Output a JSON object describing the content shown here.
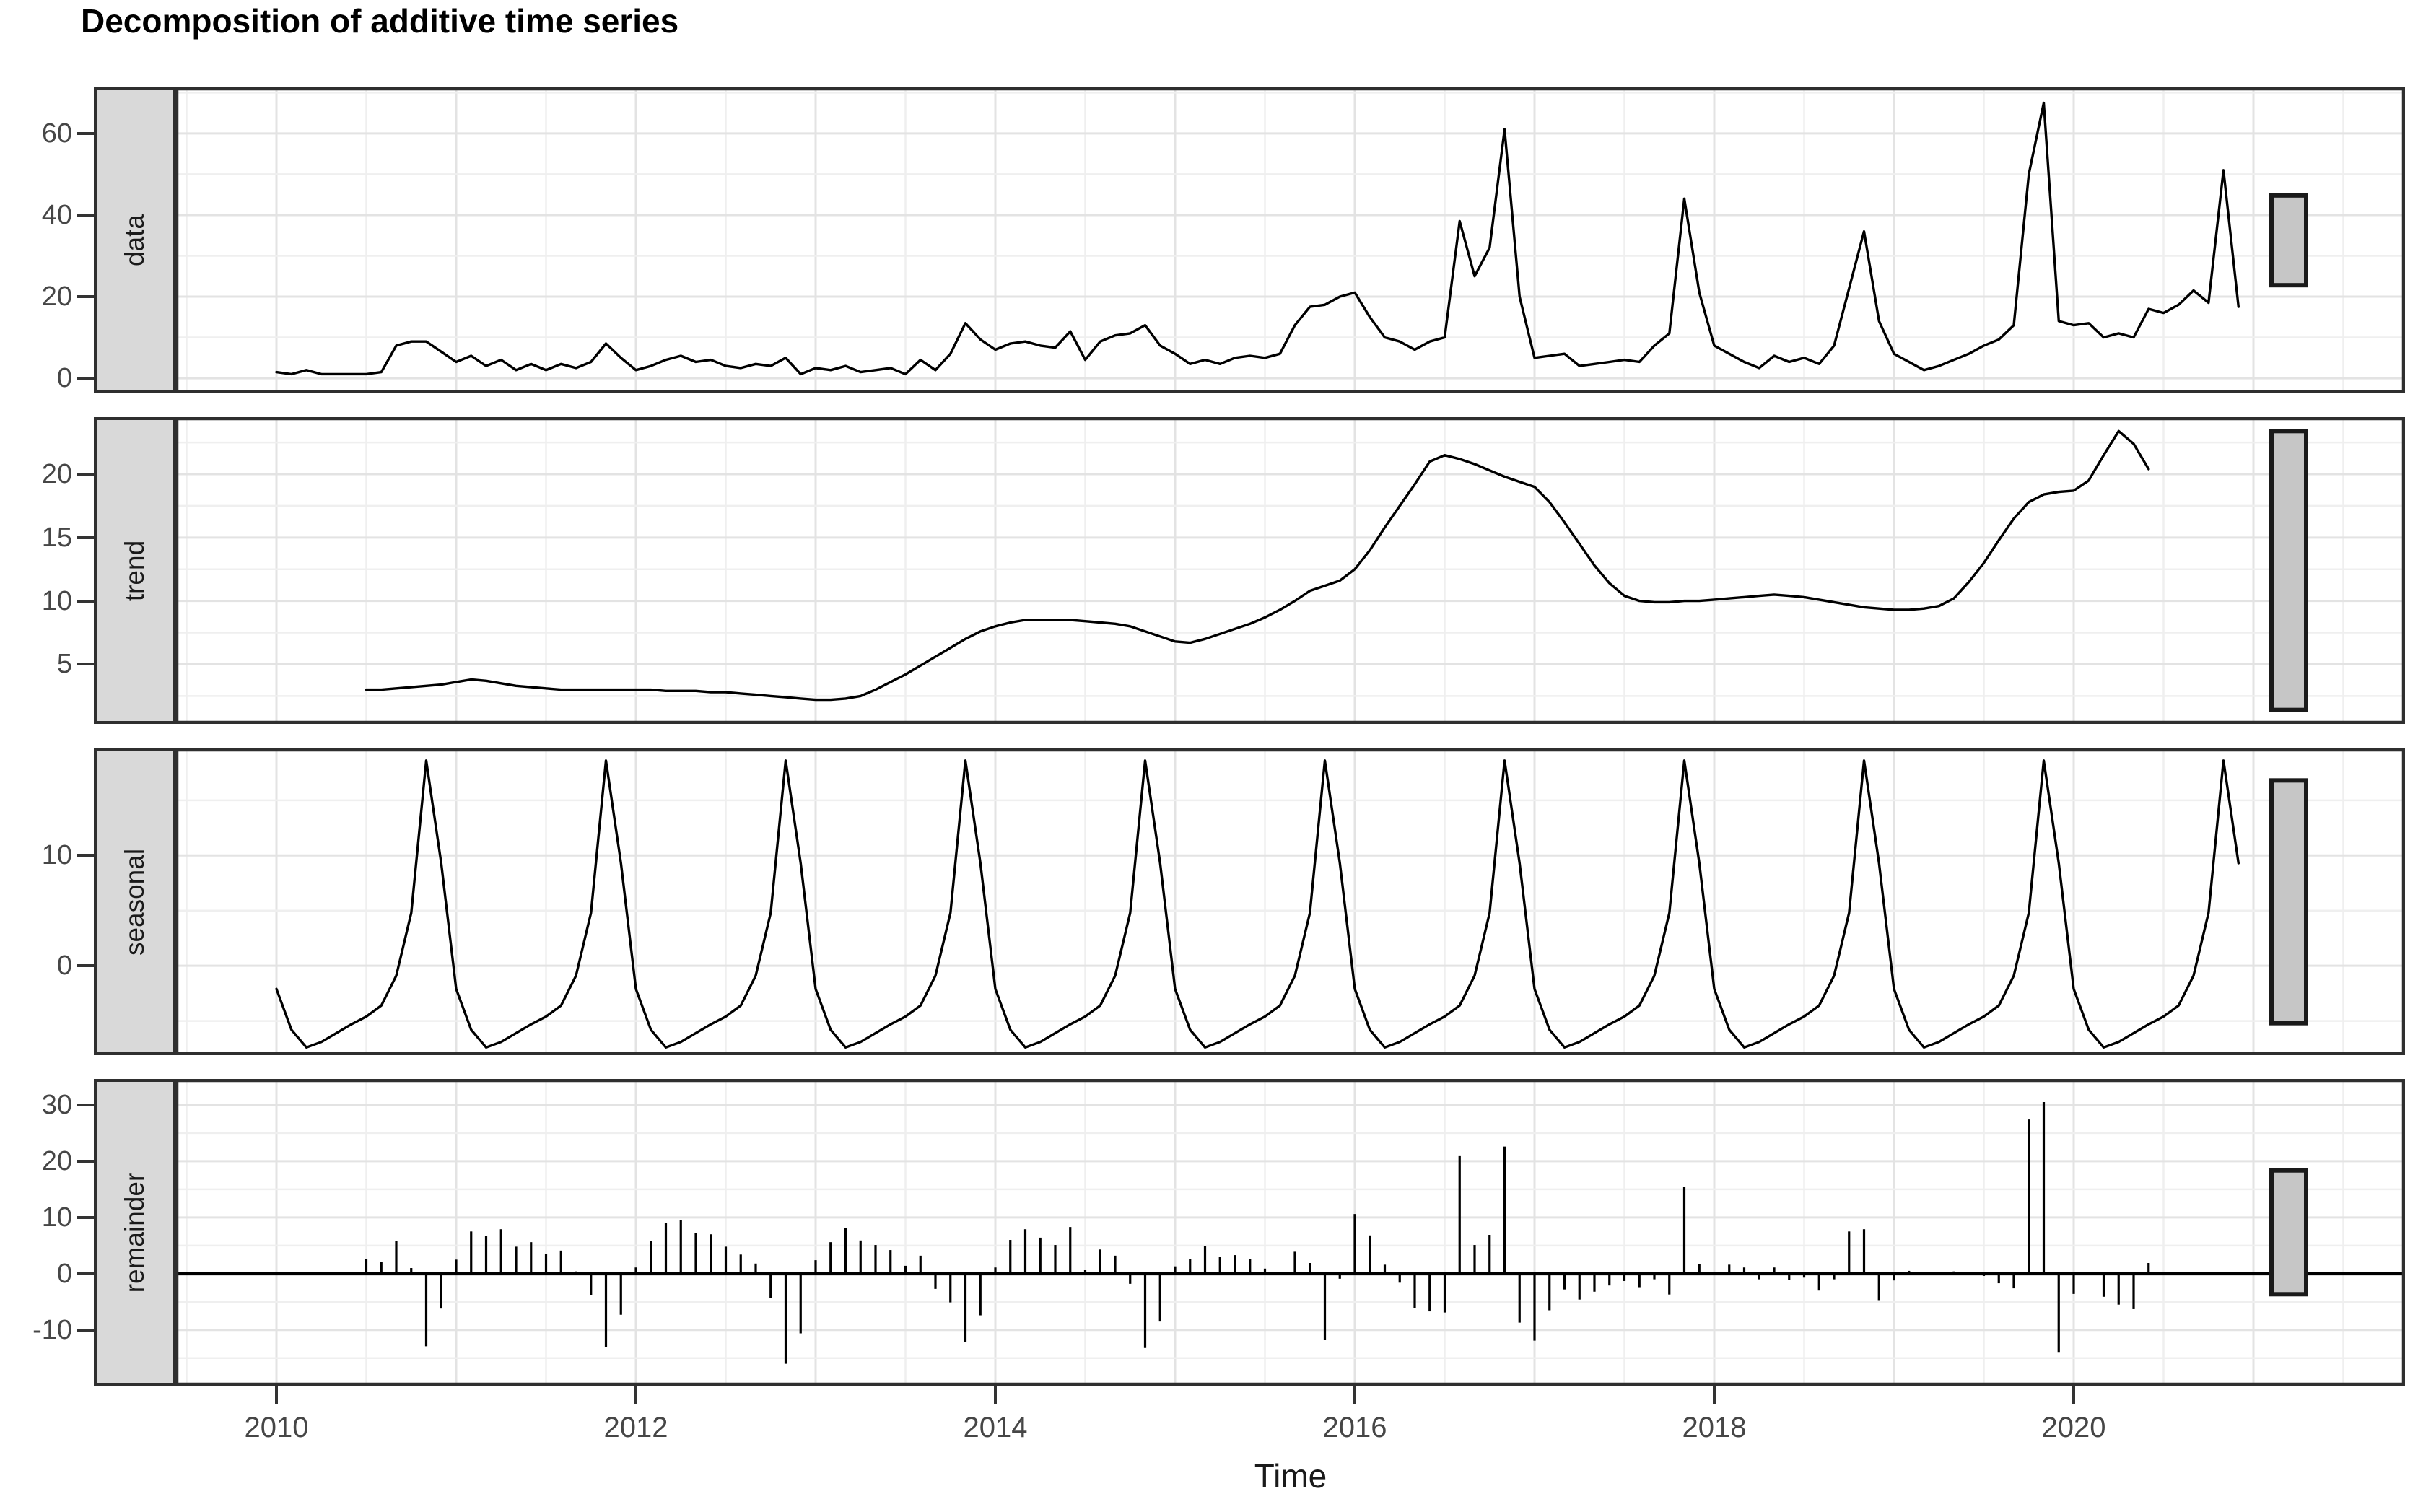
{
  "chart_data": {
    "type": "line",
    "title": "Decomposition of additive time series",
    "x_axis": {
      "label": "Time",
      "ticks": [
        "2010",
        "2012",
        "2014",
        "2016",
        "2018",
        "2020"
      ],
      "tick_years": [
        2010,
        2012,
        2014,
        2016,
        2018,
        2020
      ],
      "range": [
        2009.45,
        2021.83
      ]
    },
    "start_year": 2010,
    "frequency": 12,
    "panels": [
      {
        "id": "data",
        "label": "data",
        "kind": "line",
        "series": "observed",
        "ylim": [
          -3.7,
          71.3
        ],
        "yticks": [
          0,
          20,
          40,
          60
        ]
      },
      {
        "id": "trend",
        "label": "trend",
        "kind": "line",
        "series": "trend",
        "ylim": [
          0.3,
          24.5
        ],
        "yticks": [
          5,
          10,
          15,
          20
        ]
      },
      {
        "id": "seasonal",
        "label": "seasonal",
        "kind": "line",
        "series": "seasonal",
        "ylim": [
          -8.1,
          19.7
        ],
        "yticks": [
          0,
          10
        ]
      },
      {
        "id": "remainder",
        "label": "remainder",
        "kind": "bar",
        "series": "remainder",
        "ylim": [
          -19.9,
          34.6
        ],
        "yticks": [
          -10,
          0,
          10,
          20,
          30
        ],
        "zero_line": true
      }
    ],
    "scale_bar_units": 22,
    "observed": [
      1.5,
      1,
      2,
      1,
      1,
      1,
      1,
      1.5,
      8,
      9,
      9,
      6.5,
      4,
      5.5,
      3,
      4.5,
      2,
      3.5,
      2,
      3.5,
      2.5,
      4,
      8.5,
      5,
      2,
      3,
      4.5,
      5.5,
      4,
      4.5,
      3,
      2.5,
      3.5,
      3,
      5,
      1,
      2.5,
      2,
      3,
      1.5,
      2,
      2.5,
      1,
      4.5,
      2,
      6,
      13.5,
      9.5,
      7,
      8.5,
      9,
      8,
      7.5,
      11.5,
      4.5,
      9,
      10.5,
      11,
      13,
      8,
      6,
      3.5,
      4.5,
      3.5,
      5,
      5.5,
      5,
      6,
      13,
      17.5,
      18,
      20,
      21,
      15,
      10,
      9,
      7,
      9,
      10,
      38.5,
      25,
      32,
      61,
      20,
      5,
      5.5,
      6,
      3,
      3.5,
      4,
      4.5,
      4,
      8,
      11,
      44,
      21,
      8,
      6,
      4,
      2.5,
      5.5,
      4,
      5,
      3.5,
      8,
      22,
      36,
      14,
      6,
      4,
      2,
      3,
      4.5,
      6,
      8,
      9.5,
      13,
      50,
      67.5,
      14,
      13,
      13.5,
      10,
      11,
      10,
      17,
      16,
      18,
      21.5,
      18.5,
      51,
      17.5
    ],
    "trend": [
      null,
      null,
      null,
      null,
      null,
      null,
      3,
      3,
      3.1,
      3.2,
      3.3,
      3.4,
      3.6,
      3.8,
      3.7,
      3.5,
      3.3,
      3.2,
      3.1,
      3,
      3,
      3,
      3,
      3,
      3,
      3,
      2.9,
      2.9,
      2.9,
      2.8,
      2.8,
      2.7,
      2.6,
      2.5,
      2.4,
      2.3,
      2.2,
      2.2,
      2.3,
      2.5,
      3,
      3.6,
      4.2,
      4.9,
      5.6,
      6.3,
      7,
      7.6,
      8,
      8.3,
      8.5,
      8.5,
      8.5,
      8.5,
      8.4,
      8.3,
      8.2,
      8,
      7.6,
      7.2,
      6.8,
      6.7,
      7,
      7.4,
      7.8,
      8.2,
      8.7,
      9.3,
      10,
      10.8,
      11.2,
      11.6,
      12.5,
      14,
      15.8,
      17.5,
      19.2,
      21,
      21.5,
      21.2,
      20.8,
      20.3,
      19.8,
      19.4,
      19,
      17.8,
      16.2,
      14.5,
      12.8,
      11.4,
      10.4,
      10,
      9.9,
      9.9,
      10,
      10,
      10.1,
      10.2,
      10.3,
      10.4,
      10.5,
      10.4,
      10.3,
      10.1,
      9.9,
      9.7,
      9.5,
      9.4,
      9.3,
      9.3,
      9.4,
      9.6,
      10.2,
      11.5,
      13,
      14.8,
      16.5,
      17.8,
      18.4,
      18.6,
      18.7,
      19.5,
      21.5,
      23.4,
      22.4,
      20.4,
      null,
      null,
      null,
      null,
      null,
      null
    ],
    "seasonal_pattern": [
      -2.1,
      -5.8,
      -7.4,
      -6.9,
      -6.1,
      -5.3,
      -4.6,
      -3.6,
      -0.9,
      4.8,
      18.6,
      9.3
    ],
    "colors": {
      "series_line": "#000000",
      "strip_fill": "#d9d9d9",
      "panel_border": "#2f2f2f",
      "grid_major": "#e3e3e3",
      "grid_minor": "#efefef",
      "axis_text": "#464646",
      "scale_bar_fill": "#c6c6c6",
      "scale_bar_border": "#1a1a1a"
    }
  }
}
